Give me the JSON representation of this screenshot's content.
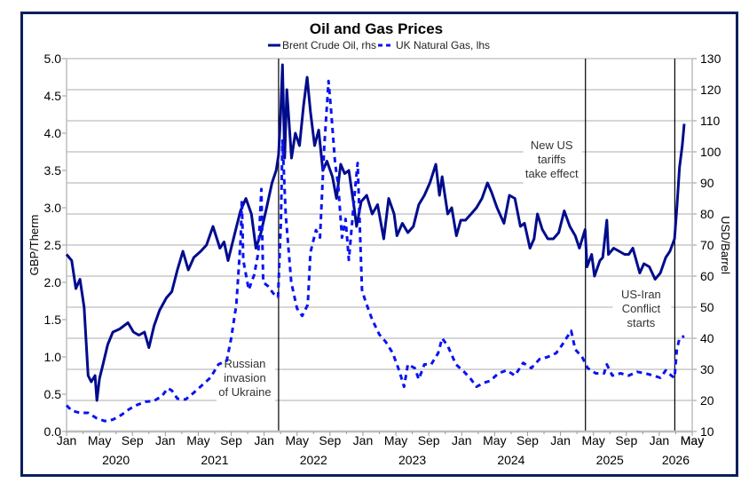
{
  "chart_data": {
    "type": "line",
    "title": "Oil and Gas Prices",
    "legend_placement": "top-center",
    "grid": "horizontal (aligned with right axis)",
    "left_axis": {
      "label": "GBP/Therm",
      "range": [
        0,
        5
      ],
      "ticks": [
        "0.0",
        "0.5",
        "1.0",
        "1.5",
        "2.0",
        "2.5",
        "3.0",
        "3.5",
        "4.0",
        "4.5",
        "5.0"
      ]
    },
    "right_axis": {
      "label": "USD/Barrel",
      "range": [
        10,
        130
      ],
      "ticks": [
        "10",
        "20",
        "30",
        "40",
        "50",
        "60",
        "70",
        "80",
        "90",
        "100",
        "110",
        "120",
        "130"
      ]
    },
    "x_axis": {
      "range": [
        "2020-01",
        "2026-05"
      ],
      "month_ticks": [
        "Jan",
        "May",
        "Sep"
      ],
      "years": [
        "2020",
        "2021",
        "2022",
        "2023",
        "2024",
        "2025",
        "2026"
      ],
      "final_label": "May"
    },
    "series": [
      {
        "name": "Brent Crude Oil, rhs",
        "axis": "right",
        "color": "#000c8c",
        "style": "solid",
        "points": [
          [
            "2020-01-01",
            67
          ],
          [
            "2020-01-20",
            65
          ],
          [
            "2020-02-05",
            56
          ],
          [
            "2020-02-20",
            59
          ],
          [
            "2020-03-05",
            50
          ],
          [
            "2020-03-20",
            28
          ],
          [
            "2020-04-01",
            26
          ],
          [
            "2020-04-15",
            28
          ],
          [
            "2020-04-22",
            20
          ],
          [
            "2020-05-01",
            27
          ],
          [
            "2020-05-15",
            32
          ],
          [
            "2020-06-01",
            38
          ],
          [
            "2020-06-20",
            42
          ],
          [
            "2020-07-15",
            43
          ],
          [
            "2020-08-15",
            45
          ],
          [
            "2020-09-05",
            42
          ],
          [
            "2020-09-25",
            41
          ],
          [
            "2020-10-15",
            42
          ],
          [
            "2020-11-01",
            37
          ],
          [
            "2020-11-20",
            44
          ],
          [
            "2020-12-10",
            49
          ],
          [
            "2021-01-05",
            53
          ],
          [
            "2021-01-25",
            55
          ],
          [
            "2021-02-15",
            62
          ],
          [
            "2021-03-05",
            68
          ],
          [
            "2021-03-25",
            62
          ],
          [
            "2021-04-15",
            66
          ],
          [
            "2021-05-10",
            68
          ],
          [
            "2021-06-01",
            70
          ],
          [
            "2021-06-25",
            76
          ],
          [
            "2021-07-20",
            69
          ],
          [
            "2021-08-05",
            71
          ],
          [
            "2021-08-20",
            65
          ],
          [
            "2021-09-15",
            74
          ],
          [
            "2021-10-05",
            81
          ],
          [
            "2021-10-25",
            85
          ],
          [
            "2021-11-15",
            80
          ],
          [
            "2021-12-01",
            69
          ],
          [
            "2021-12-20",
            74
          ],
          [
            "2022-01-10",
            82
          ],
          [
            "2022-01-30",
            90
          ],
          [
            "2022-02-15",
            94
          ],
          [
            "2022-02-24",
            99
          ],
          [
            "2022-03-01",
            112
          ],
          [
            "2022-03-08",
            128
          ],
          [
            "2022-03-16",
            98
          ],
          [
            "2022-03-24",
            120
          ],
          [
            "2022-04-11",
            98
          ],
          [
            "2022-04-25",
            106
          ],
          [
            "2022-05-10",
            102
          ],
          [
            "2022-05-25",
            115
          ],
          [
            "2022-06-08",
            124
          ],
          [
            "2022-06-20",
            113
          ],
          [
            "2022-07-05",
            102
          ],
          [
            "2022-07-20",
            107
          ],
          [
            "2022-08-05",
            94
          ],
          [
            "2022-08-20",
            97
          ],
          [
            "2022-09-10",
            92
          ],
          [
            "2022-09-25",
            85
          ],
          [
            "2022-10-10",
            96
          ],
          [
            "2022-10-25",
            93
          ],
          [
            "2022-11-10",
            94
          ],
          [
            "2022-11-28",
            83
          ],
          [
            "2022-12-08",
            76
          ],
          [
            "2022-12-25",
            84
          ],
          [
            "2023-01-15",
            86
          ],
          [
            "2023-02-05",
            80
          ],
          [
            "2023-02-25",
            83
          ],
          [
            "2023-03-17",
            72
          ],
          [
            "2023-04-05",
            85
          ],
          [
            "2023-04-25",
            80
          ],
          [
            "2023-05-05",
            73
          ],
          [
            "2023-05-25",
            77
          ],
          [
            "2023-06-15",
            74
          ],
          [
            "2023-07-05",
            76
          ],
          [
            "2023-07-25",
            83
          ],
          [
            "2023-08-15",
            86
          ],
          [
            "2023-09-05",
            90
          ],
          [
            "2023-09-27",
            96
          ],
          [
            "2023-10-10",
            86
          ],
          [
            "2023-10-20",
            92
          ],
          [
            "2023-11-10",
            80
          ],
          [
            "2023-11-25",
            82
          ],
          [
            "2023-12-12",
            73
          ],
          [
            "2023-12-28",
            78
          ],
          [
            "2024-01-15",
            78
          ],
          [
            "2024-02-05",
            80
          ],
          [
            "2024-02-25",
            82
          ],
          [
            "2024-03-15",
            85
          ],
          [
            "2024-04-05",
            90
          ],
          [
            "2024-04-20",
            87
          ],
          [
            "2024-05-10",
            82
          ],
          [
            "2024-06-05",
            77
          ],
          [
            "2024-06-25",
            86
          ],
          [
            "2024-07-15",
            85
          ],
          [
            "2024-08-05",
            76
          ],
          [
            "2024-08-20",
            77
          ],
          [
            "2024-09-10",
            69
          ],
          [
            "2024-09-25",
            72
          ],
          [
            "2024-10-07",
            80
          ],
          [
            "2024-10-25",
            75
          ],
          [
            "2024-11-15",
            72
          ],
          [
            "2024-12-05",
            72
          ],
          [
            "2024-12-25",
            74
          ],
          [
            "2025-01-15",
            81
          ],
          [
            "2025-02-05",
            76
          ],
          [
            "2025-02-25",
            73
          ],
          [
            "2025-03-10",
            69
          ],
          [
            "2025-03-31",
            75
          ],
          [
            "2025-04-08",
            63
          ],
          [
            "2025-04-25",
            67
          ],
          [
            "2025-05-05",
            60
          ],
          [
            "2025-05-25",
            65
          ],
          [
            "2025-06-05",
            66
          ],
          [
            "2025-06-20",
            78
          ],
          [
            "2025-06-26",
            67
          ],
          [
            "2025-07-15",
            69
          ],
          [
            "2025-08-05",
            68
          ],
          [
            "2025-08-25",
            67
          ],
          [
            "2025-09-10",
            67
          ],
          [
            "2025-09-25",
            69
          ],
          [
            "2025-10-20",
            61
          ],
          [
            "2025-11-05",
            64
          ],
          [
            "2025-11-25",
            63
          ],
          [
            "2025-12-16",
            59
          ],
          [
            "2026-01-05",
            61
          ],
          [
            "2026-01-25",
            66
          ],
          [
            "2026-02-10",
            68
          ],
          [
            "2026-02-27",
            72
          ],
          [
            "2026-03-05",
            82
          ],
          [
            "2026-03-15",
            95
          ],
          [
            "2026-03-25",
            102
          ],
          [
            "2026-04-02",
            109
          ]
        ]
      },
      {
        "name": "UK Natural Gas, lhs",
        "axis": "left",
        "color": "#0a14f0",
        "style": "dashed",
        "points": [
          [
            "2020-01-01",
            0.35
          ],
          [
            "2020-01-20",
            0.28
          ],
          [
            "2020-02-20",
            0.25
          ],
          [
            "2020-03-20",
            0.25
          ],
          [
            "2020-04-20",
            0.18
          ],
          [
            "2020-05-20",
            0.14
          ],
          [
            "2020-06-20",
            0.16
          ],
          [
            "2020-07-20",
            0.22
          ],
          [
            "2020-08-20",
            0.3
          ],
          [
            "2020-09-20",
            0.36
          ],
          [
            "2020-10-20",
            0.4
          ],
          [
            "2020-11-20",
            0.41
          ],
          [
            "2020-12-20",
            0.48
          ],
          [
            "2021-01-10",
            0.58
          ],
          [
            "2021-01-25",
            0.55
          ],
          [
            "2021-02-15",
            0.44
          ],
          [
            "2021-03-15",
            0.43
          ],
          [
            "2021-04-15",
            0.52
          ],
          [
            "2021-05-15",
            0.62
          ],
          [
            "2021-06-15",
            0.72
          ],
          [
            "2021-07-15",
            0.9
          ],
          [
            "2021-08-15",
            0.95
          ],
          [
            "2021-09-01",
            1.25
          ],
          [
            "2021-09-20",
            1.7
          ],
          [
            "2021-10-06",
            2.6
          ],
          [
            "2021-10-10",
            3.1
          ],
          [
            "2021-10-15",
            2.3
          ],
          [
            "2021-11-05",
            1.9
          ],
          [
            "2021-11-25",
            2.1
          ],
          [
            "2021-12-10",
            2.4
          ],
          [
            "2021-12-21",
            3.25
          ],
          [
            "2021-12-28",
            2.0
          ],
          [
            "2022-01-15",
            1.95
          ],
          [
            "2022-02-05",
            1.85
          ],
          [
            "2022-02-22",
            1.8
          ],
          [
            "2022-03-02",
            2.8
          ],
          [
            "2022-03-08",
            3.9
          ],
          [
            "2022-03-20",
            2.9
          ],
          [
            "2022-04-10",
            2.0
          ],
          [
            "2022-05-01",
            1.65
          ],
          [
            "2022-05-20",
            1.55
          ],
          [
            "2022-06-10",
            1.7
          ],
          [
            "2022-06-20",
            2.4
          ],
          [
            "2022-07-10",
            2.7
          ],
          [
            "2022-07-25",
            2.6
          ],
          [
            "2022-08-10",
            3.8
          ],
          [
            "2022-08-26",
            4.7
          ],
          [
            "2022-09-05",
            4.3
          ],
          [
            "2022-09-20",
            3.6
          ],
          [
            "2022-10-01",
            3.3
          ],
          [
            "2022-10-15",
            2.6
          ],
          [
            "2022-10-28",
            2.85
          ],
          [
            "2022-11-10",
            2.3
          ],
          [
            "2022-12-01",
            3.2
          ],
          [
            "2022-12-12",
            3.6
          ],
          [
            "2022-12-28",
            1.9
          ],
          [
            "2023-01-10",
            1.75
          ],
          [
            "2023-02-05",
            1.5
          ],
          [
            "2023-03-01",
            1.3
          ],
          [
            "2023-03-25",
            1.2
          ],
          [
            "2023-04-20",
            1.05
          ],
          [
            "2023-05-15",
            0.8
          ],
          [
            "2023-06-01",
            0.6
          ],
          [
            "2023-06-15",
            0.9
          ],
          [
            "2023-07-10",
            0.85
          ],
          [
            "2023-07-25",
            0.7
          ],
          [
            "2023-08-15",
            0.9
          ],
          [
            "2023-09-10",
            0.9
          ],
          [
            "2023-10-05",
            1.05
          ],
          [
            "2023-10-20",
            1.25
          ],
          [
            "2023-11-10",
            1.15
          ],
          [
            "2023-12-10",
            0.9
          ],
          [
            "2024-01-10",
            0.8
          ],
          [
            "2024-02-05",
            0.7
          ],
          [
            "2024-02-25",
            0.6
          ],
          [
            "2024-03-20",
            0.65
          ],
          [
            "2024-04-15",
            0.68
          ],
          [
            "2024-05-15",
            0.78
          ],
          [
            "2024-06-15",
            0.82
          ],
          [
            "2024-07-15",
            0.75
          ],
          [
            "2024-08-15",
            0.92
          ],
          [
            "2024-09-15",
            0.85
          ],
          [
            "2024-10-15",
            0.97
          ],
          [
            "2024-11-15",
            1.0
          ],
          [
            "2024-12-15",
            1.05
          ],
          [
            "2025-01-05",
            1.15
          ],
          [
            "2025-02-10",
            1.35
          ],
          [
            "2025-02-25",
            1.1
          ],
          [
            "2025-03-20",
            1.0
          ],
          [
            "2025-04-10",
            0.85
          ],
          [
            "2025-05-10",
            0.78
          ],
          [
            "2025-06-10",
            0.78
          ],
          [
            "2025-06-20",
            0.9
          ],
          [
            "2025-07-10",
            0.75
          ],
          [
            "2025-08-10",
            0.78
          ],
          [
            "2025-09-10",
            0.75
          ],
          [
            "2025-10-10",
            0.8
          ],
          [
            "2025-11-10",
            0.78
          ],
          [
            "2025-12-10",
            0.75
          ],
          [
            "2026-01-05",
            0.72
          ],
          [
            "2026-01-25",
            0.82
          ],
          [
            "2026-02-15",
            0.75
          ],
          [
            "2026-02-27",
            0.72
          ],
          [
            "2026-03-05",
            1.1
          ],
          [
            "2026-03-15",
            1.25
          ],
          [
            "2026-04-02",
            1.28
          ]
        ]
      }
    ],
    "events": [
      {
        "date": "2022-02-24",
        "label": [
          "Russian",
          "invasion",
          "of Ukraine"
        ],
        "label_side": "left",
        "label_position": "lower"
      },
      {
        "date": "2025-04-02",
        "label": [
          "New US",
          "tariffs",
          "take effect"
        ],
        "label_side": "left",
        "label_position": "upper"
      },
      {
        "date": "2026-02-28",
        "label": [
          "US-Iran",
          "Conflict",
          "starts"
        ],
        "label_side": "left",
        "label_position": "middle"
      }
    ]
  }
}
